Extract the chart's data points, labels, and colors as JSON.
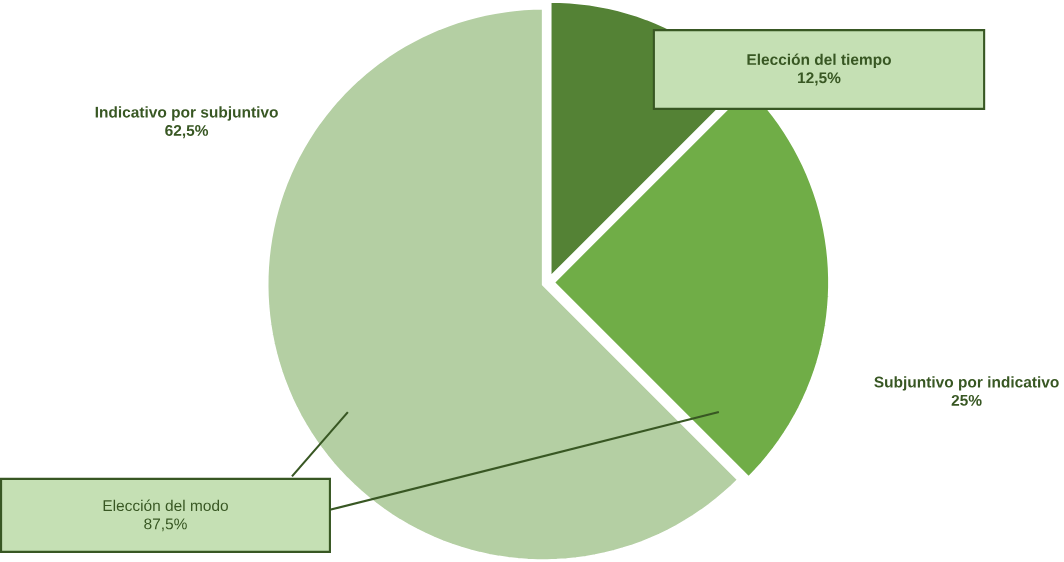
{
  "chart_data": {
    "type": "pie",
    "categories": [
      "Elección del tiempo",
      "Subjuntivo por indicativo",
      "Indicativo por subjuntivo"
    ],
    "values": [
      12.5,
      25,
      62.5
    ],
    "value_labels": [
      "12,5%",
      "25%",
      "62,5%"
    ],
    "colors": [
      "#548235",
      "#70ad47",
      "#b4cfa3"
    ],
    "annotations": [
      "Elección del modo",
      "87,5%"
    ]
  }
}
